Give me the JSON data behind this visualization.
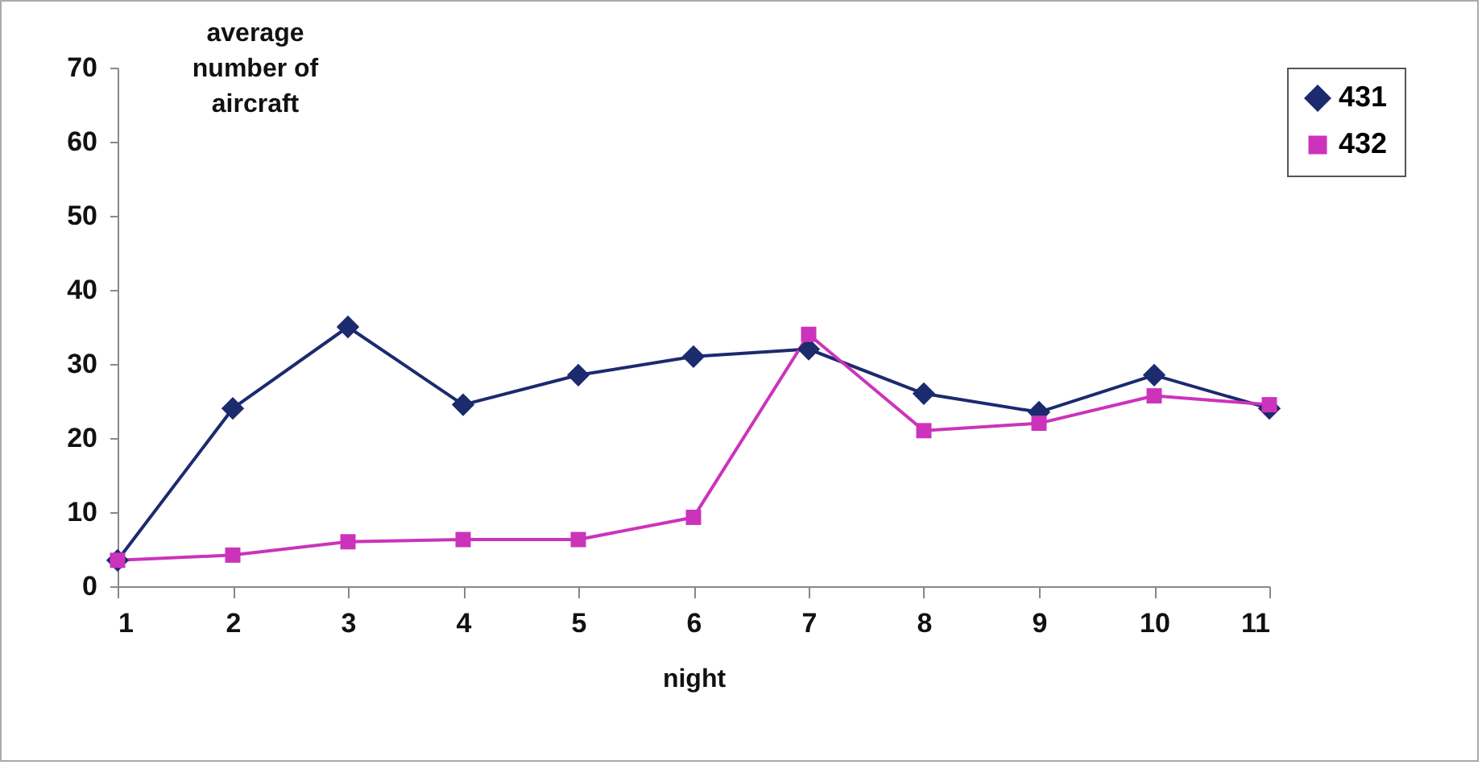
{
  "chart_data": {
    "type": "line",
    "xlabel": "night",
    "ylabel": "average number of aircraft",
    "x": [
      1,
      2,
      3,
      4,
      5,
      6,
      7,
      8,
      9,
      10,
      11
    ],
    "series": [
      {
        "name": "431",
        "color": "#1c2a6e",
        "marker": "diamond",
        "values": [
          3.5,
          24,
          35,
          24.5,
          28.5,
          31,
          32,
          26,
          23.5,
          28.5,
          24
        ]
      },
      {
        "name": "432",
        "color": "#cc33bb",
        "marker": "square",
        "values": [
          3.5,
          4.2,
          6,
          6.3,
          6.3,
          9.3,
          34,
          21,
          22,
          25.7,
          24.5
        ]
      }
    ],
    "xlim": [
      1,
      11
    ],
    "xticks": [
      1,
      2,
      3,
      4,
      5,
      6,
      7,
      8,
      9,
      10,
      11
    ],
    "ylim": [
      0,
      70
    ],
    "yticks": [
      0,
      10,
      20,
      30,
      40,
      50,
      60,
      70
    ],
    "grid": false,
    "legend": "right",
    "line_style": "solid"
  }
}
